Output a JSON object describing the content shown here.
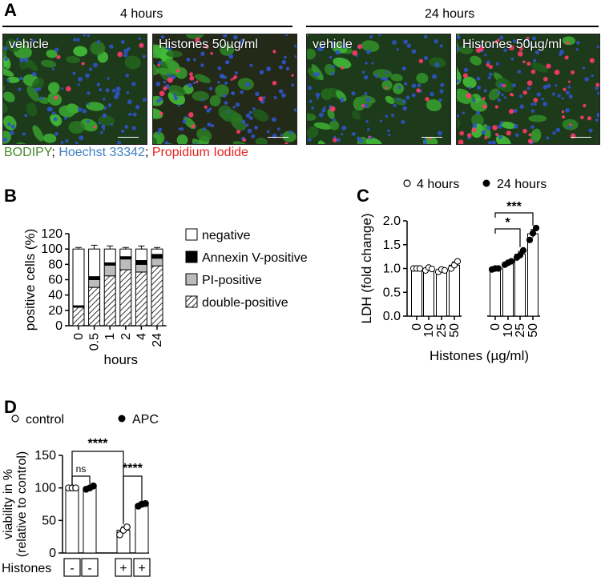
{
  "panelA": {
    "letter": "A",
    "time_labels": [
      "4 hours",
      "24 hours"
    ],
    "images": [
      {
        "label": "vehicle",
        "scale": "100µm"
      },
      {
        "label": "Histones 50µg/ml",
        "scale": "100µm"
      },
      {
        "label": "vehicle",
        "scale": "100µm"
      },
      {
        "label": "Histones 50µg/ml",
        "scale": "100µm"
      }
    ],
    "stain_legend": [
      {
        "text": "BODIPY",
        "color": "#4a8a2a"
      },
      {
        "text": "; ",
        "color": "#000000"
      },
      {
        "text": "Hoechst 33342",
        "color": "#3f7fc6"
      },
      {
        "text": "; ",
        "color": "#000000"
      },
      {
        "text": "Propidium Iodide",
        "color": "#e8231f"
      }
    ]
  },
  "chart_data": [
    {
      "panel": "B",
      "type": "bar",
      "stacked": true,
      "categories": [
        "0",
        "0.5",
        "1",
        "2",
        "4",
        "24"
      ],
      "xlabel": "hours",
      "ylabel": "positive cells (%)",
      "ylim": [
        0,
        120
      ],
      "yticks": [
        0,
        20,
        40,
        60,
        80,
        100,
        120
      ],
      "series": [
        {
          "name": "double-positive",
          "values": [
            24,
            50,
            65,
            73,
            70,
            78
          ],
          "errors": [
            2,
            6,
            6,
            5,
            5,
            4
          ]
        },
        {
          "name": "PI-positive",
          "values": [
            1,
            10,
            14,
            14,
            10,
            10
          ],
          "errors": [
            1,
            3,
            2,
            2,
            3,
            3
          ]
        },
        {
          "name": "Annexin V-positive",
          "values": [
            1,
            4,
            3,
            3,
            5,
            5
          ],
          "errors": [
            1,
            1,
            1,
            1,
            1,
            1
          ]
        },
        {
          "name": "negative",
          "values": [
            74,
            36,
            18,
            10,
            15,
            7
          ],
          "errors": [
            2,
            5,
            4,
            2,
            4,
            2
          ]
        }
      ],
      "legend_order": [
        "negative",
        "Annexin V-positive",
        "PI-positive",
        "double-positive"
      ]
    },
    {
      "panel": "C",
      "type": "bar",
      "groups": [
        "4 hours",
        "4 hours",
        "4 hours",
        "4 hours",
        "24 hours",
        "24 hours",
        "24 hours",
        "24 hours"
      ],
      "categories": [
        "0",
        "10",
        "25",
        "50",
        "0",
        "10",
        "25",
        "50"
      ],
      "values": [
        1.0,
        0.99,
        0.96,
        1.07,
        1.0,
        1.12,
        1.3,
        1.73
      ],
      "errors": [
        0.02,
        0.03,
        0.03,
        0.07,
        0.02,
        0.04,
        0.06,
        0.09
      ],
      "points": [
        [
          1.0,
          1.0,
          1.0
        ],
        [
          0.96,
          1.02,
          0.99
        ],
        [
          0.93,
          0.98,
          0.96
        ],
        [
          1.0,
          1.07,
          1.15
        ],
        [
          0.98,
          1.0,
          1.0
        ],
        [
          1.08,
          1.12,
          1.15
        ],
        [
          1.23,
          1.28,
          1.38
        ],
        [
          1.6,
          1.74,
          1.85
        ]
      ],
      "xlabel": "Histones (µg/ml)",
      "ylabel": "LDH (fold change)",
      "ylim": [
        0,
        2.0
      ],
      "yticks": [
        "0.0",
        "0.5",
        "1.0",
        "1.5",
        "2.0"
      ],
      "legend": [
        "4 hours",
        "24 hours"
      ],
      "significance": [
        {
          "from": 4,
          "to": 6,
          "label": "*"
        },
        {
          "from": 4,
          "to": 7,
          "label": "***"
        }
      ]
    },
    {
      "panel": "D",
      "type": "bar",
      "groups": [
        "control",
        "APC",
        "control",
        "APC"
      ],
      "histones": [
        "-",
        "-",
        "+",
        "+"
      ],
      "histones_label": "Histones",
      "values": [
        100,
        100,
        35,
        74
      ],
      "errors": [
        1,
        2,
        5,
        2
      ],
      "points": [
        [
          100,
          100,
          100
        ],
        [
          98,
          100,
          103
        ],
        [
          28,
          35,
          40
        ],
        [
          72,
          75,
          76
        ]
      ],
      "ylabel": "viability in %\n(relative to control)",
      "ylabel_lines": [
        "viability in %",
        "(relative to control)"
      ],
      "ylim": [
        0,
        150
      ],
      "yticks": [
        0,
        50,
        100,
        150
      ],
      "legend": [
        "control",
        "APC"
      ],
      "significance": [
        {
          "from": 0,
          "to": 1,
          "label": "ns"
        },
        {
          "from": 0,
          "to": 2,
          "label": "****"
        },
        {
          "from": 2,
          "to": 3,
          "label": "****"
        }
      ]
    }
  ],
  "labels": {
    "B": "B",
    "C": "C",
    "D": "D"
  }
}
